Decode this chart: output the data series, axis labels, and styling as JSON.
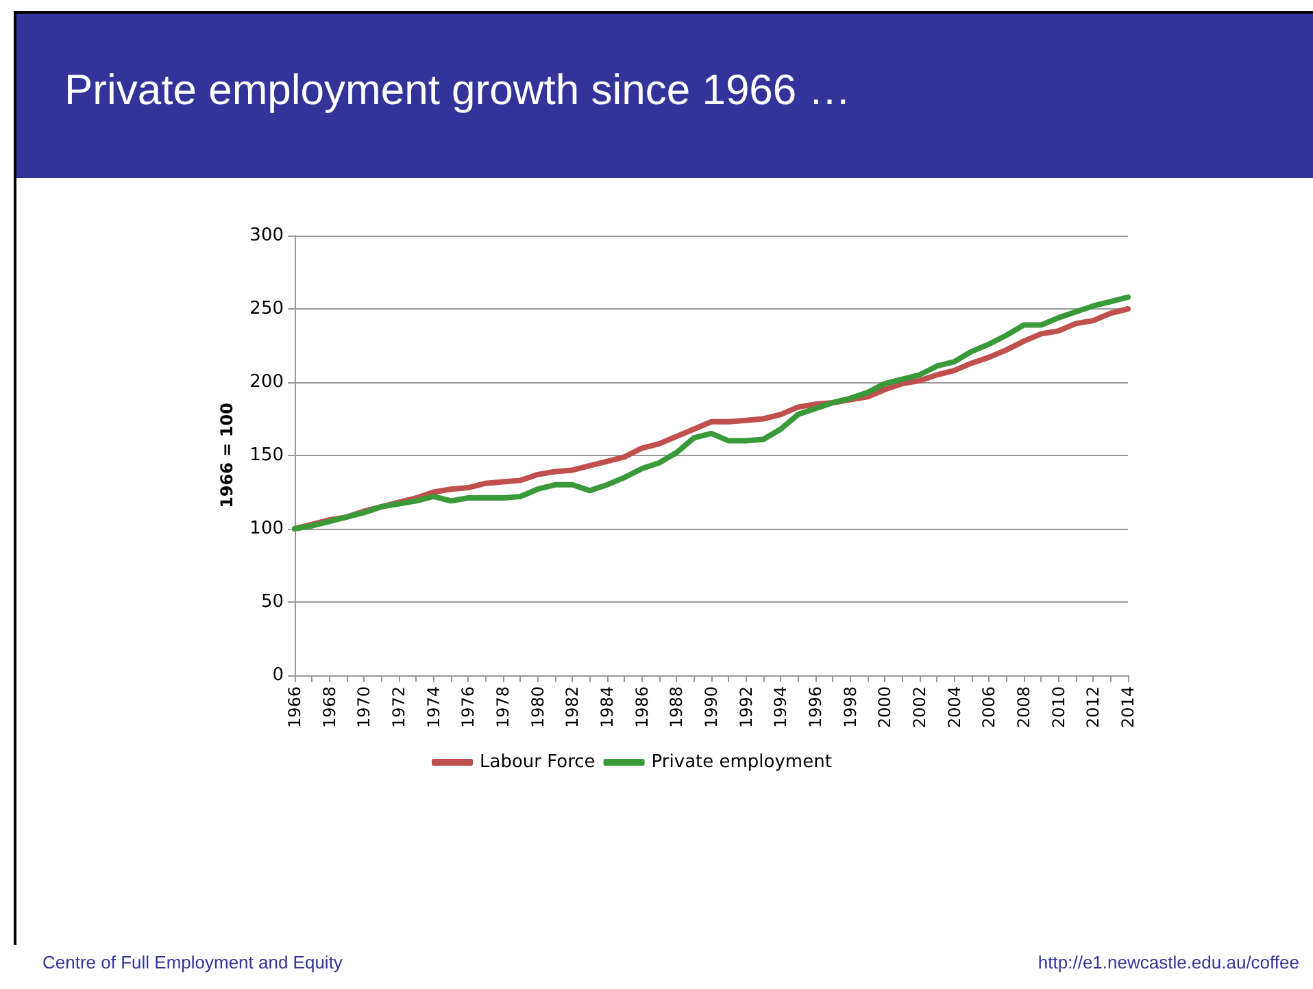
{
  "chart_data": {
    "type": "line",
    "title": "Private employment growth since 1966 …",
    "ylabel": "1966 = 100",
    "categories": [
      "1966",
      null,
      "1968",
      null,
      "1970",
      null,
      "1972",
      null,
      "1974",
      null,
      "1976",
      null,
      "1978",
      null,
      "1980",
      null,
      "1982",
      null,
      "1984",
      null,
      "1986",
      null,
      "1988",
      null,
      "1990",
      null,
      "1992",
      null,
      "1994",
      null,
      "1996",
      null,
      "1998",
      null,
      "2000",
      null,
      "2002",
      null,
      "2004",
      null,
      "2006",
      null,
      "2008",
      null,
      "2010",
      null,
      "2012",
      null,
      "2014"
    ],
    "series": [
      {
        "name": "Labour Force",
        "color": "#c0504d",
        "values": [
          100,
          103,
          106,
          108,
          112,
          115,
          118,
          121,
          125,
          127,
          128,
          131,
          132,
          133,
          137,
          139,
          140,
          143,
          146,
          149,
          155,
          158,
          163,
          168,
          173,
          173,
          174,
          175,
          178,
          183,
          185,
          186,
          188,
          190,
          195,
          199,
          201,
          205,
          208,
          213,
          217,
          222,
          228,
          233,
          235,
          240,
          242,
          247,
          250
        ]
      },
      {
        "name": "Private employment",
        "color": "#3a9a3a",
        "values": [
          100,
          102,
          105,
          108,
          111,
          115,
          117,
          119,
          122,
          119,
          121,
          121,
          121,
          122,
          127,
          130,
          130,
          126,
          130,
          135,
          141,
          145,
          152,
          162,
          165,
          160,
          160,
          161,
          168,
          178,
          182,
          186,
          189,
          193,
          199,
          202,
          205,
          211,
          214,
          221,
          226,
          232,
          239,
          239,
          244,
          248,
          252,
          255,
          258
        ]
      }
    ],
    "ylim": [
      0,
      300
    ],
    "yticks": [
      0,
      50,
      100,
      150,
      200,
      250,
      300
    ],
    "grid": "y",
    "legend": "bottom",
    "marker": "none",
    "line_style": "solid",
    "annotations": [
      "Centre of Full Employment and Equity",
      "http://e1.newcastle.edu.au/coffee"
    ]
  }
}
